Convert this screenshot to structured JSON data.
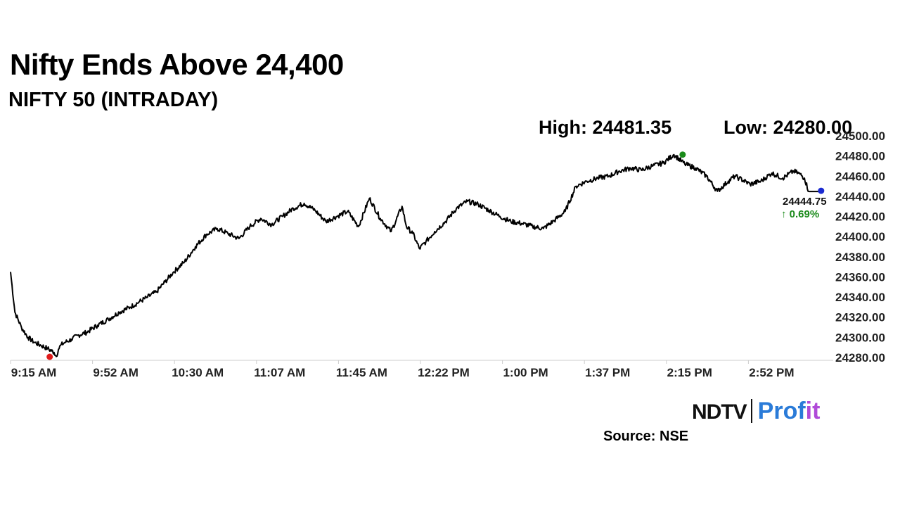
{
  "header": {
    "title": "Nifty Ends Above 24,400",
    "subtitle": "NIFTY 50 (INTRADAY)",
    "high_label": "High: 24481.35",
    "low_label": "Low: 24280.00"
  },
  "footer": {
    "logo_left": "NDTV",
    "logo_right_a": "Prof",
    "logo_right_b": "it",
    "source": "Source: NSE"
  },
  "colors": {
    "line": "#000000",
    "high_marker": "#1a8a1a",
    "low_marker": "#e01b1b",
    "last_marker": "#1b2bd1",
    "change": "#1a8a1a",
    "axis": "#cccccc",
    "logo_blue": "#2a7bd8",
    "logo_purple": "#b04ad8"
  },
  "chart_data": {
    "type": "line",
    "title": "Nifty Ends Above 24,400",
    "subtitle": "NIFTY 50 (INTRADAY)",
    "x_tick_labels": [
      "9:15 AM",
      "9:52 AM",
      "10:30 AM",
      "11:07 AM",
      "11:45 AM",
      "12:22 PM",
      "1:00 PM",
      "1:37 PM",
      "2:15 PM",
      "2:52 PM"
    ],
    "y_tick_labels": [
      "24280.00",
      "24300.00",
      "24320.00",
      "24340.00",
      "24360.00",
      "24380.00",
      "24400.00",
      "24420.00",
      "24440.00",
      "24460.00",
      "24480.00",
      "24500.00"
    ],
    "ylim": [
      24280,
      24500
    ],
    "xlim_minutes": [
      555,
      930
    ],
    "grid": false,
    "y_axis_position": "right",
    "series": [
      {
        "x_minutes": [
          555,
          557,
          560,
          563,
          566,
          569,
          572,
          575,
          576,
          577,
          578,
          580,
          583,
          586,
          590,
          595,
          600,
          605,
          610,
          614,
          618,
          622,
          626,
          630,
          635,
          640,
          645,
          650,
          655,
          660,
          665,
          670,
          675,
          680,
          685,
          690,
          695,
          700,
          705,
          710,
          715,
          720,
          725,
          730,
          735,
          737,
          740,
          743,
          746,
          750,
          755,
          760,
          765,
          770,
          775,
          780,
          785,
          790,
          795,
          800,
          805,
          810,
          815,
          820,
          825,
          830,
          835,
          840,
          845,
          850,
          855,
          860,
          865,
          870,
          875,
          880,
          885,
          888,
          890,
          895,
          900,
          905,
          910,
          915,
          918,
          920,
          922,
          925,
          928
        ],
        "values": [
          24365,
          24325,
          24310,
          24300,
          24295,
          24292,
          24289,
          24285,
          24281,
          24288,
          24292,
          24295,
          24298,
          24302,
          24305,
          24312,
          24318,
          24325,
          24330,
          24335,
          24340,
          24345,
          24355,
          24365,
          24375,
          24390,
          24402,
          24408,
          24403,
          24398,
          24410,
          24418,
          24412,
          24420,
          24428,
          24433,
          24426,
          24415,
          24420,
          24425,
          24410,
          24438,
          24418,
          24405,
          24430,
          24410,
          24403,
          24388,
          24395,
          24405,
          24415,
          24428,
          24435,
          24432,
          24426,
          24420,
          24415,
          24413,
          24410,
          24408,
          24416,
          24425,
          24450,
          24455,
          24458,
          24460,
          24465,
          24468,
          24466,
          24470,
          24473,
          24481.35,
          24472,
          24468,
          24460,
          24445,
          24455,
          24460,
          24458,
          24452,
          24455,
          24463,
          24458,
          24465,
          24462,
          24458,
          24444.75,
          24444.75,
          24444.75
        ]
      }
    ],
    "high": {
      "value": 24481.35,
      "x_minutes": 864
    },
    "low": {
      "value": 24280.0,
      "x_minutes": 573
    },
    "last": {
      "value": 24444.75,
      "label": "24444.75",
      "change_label": "0.69%",
      "change_arrow": "↑",
      "x_minutes": 928
    }
  }
}
